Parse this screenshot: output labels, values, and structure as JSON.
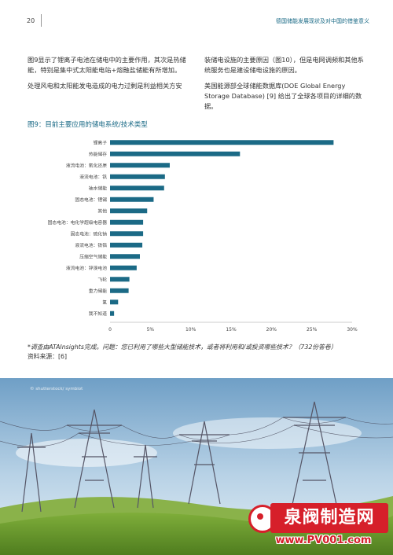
{
  "header": {
    "page_number": "20",
    "title": "德国储能发展现状及对中国的借鉴意义"
  },
  "body_text": {
    "left": [
      "图9显示了锂离子电池在储电中的主要作用，其次是热储能，特别是集中式太阳能电站+熔融盐储能有所增加。",
      "处理风电和太阳能发电造成的电力过剩是利益相关方安"
    ],
    "right": [
      "装储电设施的主要原因（图10），但是电网调频和其他系统服务也是建设储电设施的原因。",
      "美国能源部全球储能数据库(DOE Global Energy Storage Database) [9] 给出了全球各项目的详细的数据。"
    ]
  },
  "figure": {
    "title": "图9：目前主要应用的储电系统/技术类型"
  },
  "chart_data": {
    "type": "bar",
    "orientation": "horizontal",
    "categories": [
      "锂离子",
      "热能储存",
      "液流电池：氧化还原",
      "液流电池：钒",
      "抽水储能",
      "固态电池：锂锡",
      "其他",
      "固态电池：电化学超级电容器",
      "固态电池：硫化钠",
      "液流电池：铁铬",
      "压缩空气储能",
      "液流电池：锌溴电池",
      "飞轮",
      "重力储能",
      "氢",
      "我不知道"
    ],
    "values": [
      27.7,
      16.1,
      7.4,
      6.8,
      6.7,
      5.4,
      4.6,
      4.1,
      4.1,
      4.0,
      3.7,
      3.3,
      2.4,
      2.3,
      1.0,
      0.5
    ],
    "xticks": [
      "0",
      "5%",
      "10%",
      "15%",
      "20%",
      "25%",
      "30%"
    ],
    "xlim": [
      0,
      30
    ],
    "bar_color": "#1b6a86"
  },
  "footnote": {
    "note": "*调查由ATAInsights完成。问题：您已利用了哪些大型储能技术，或者将利用和/或投资哪些技术？（732份答卷）",
    "source": "资料来源：[6]"
  },
  "photo": {
    "credit": "© shutterstock/ symbiot"
  },
  "watermark": {
    "name": "泉阀制造网",
    "url": "www.PV001.com"
  }
}
